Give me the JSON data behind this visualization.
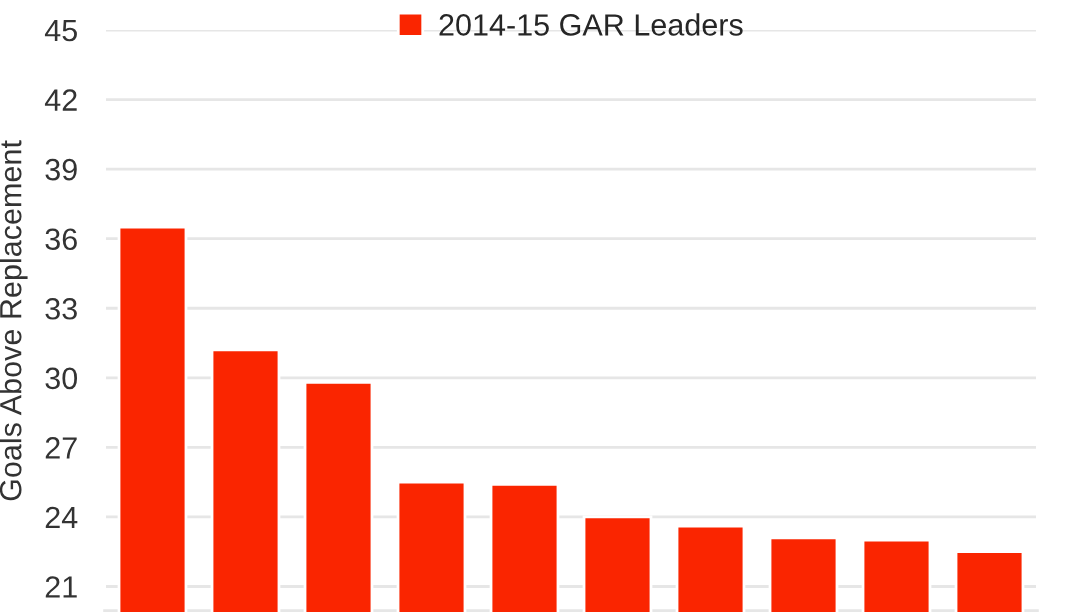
{
  "chart_data": {
    "type": "bar",
    "ylabel": "Goals Above Replacement",
    "categories": [
      null,
      null,
      null,
      null,
      null,
      null,
      null,
      null,
      null,
      null
    ],
    "series": [
      {
        "name": "2014-15 GAR Leaders",
        "color": "#fa2500",
        "values": [
          36.5,
          31.2,
          29.8,
          25.5,
          25.4,
          24.0,
          23.6,
          23.1,
          23.0,
          22.5
        ]
      }
    ],
    "ylim": [
      19.9,
      45
    ],
    "yticks": [
      21,
      24,
      27,
      30,
      33,
      36,
      39,
      42,
      45
    ],
    "grid": "y",
    "legend": "top",
    "tick_labels": "y"
  }
}
